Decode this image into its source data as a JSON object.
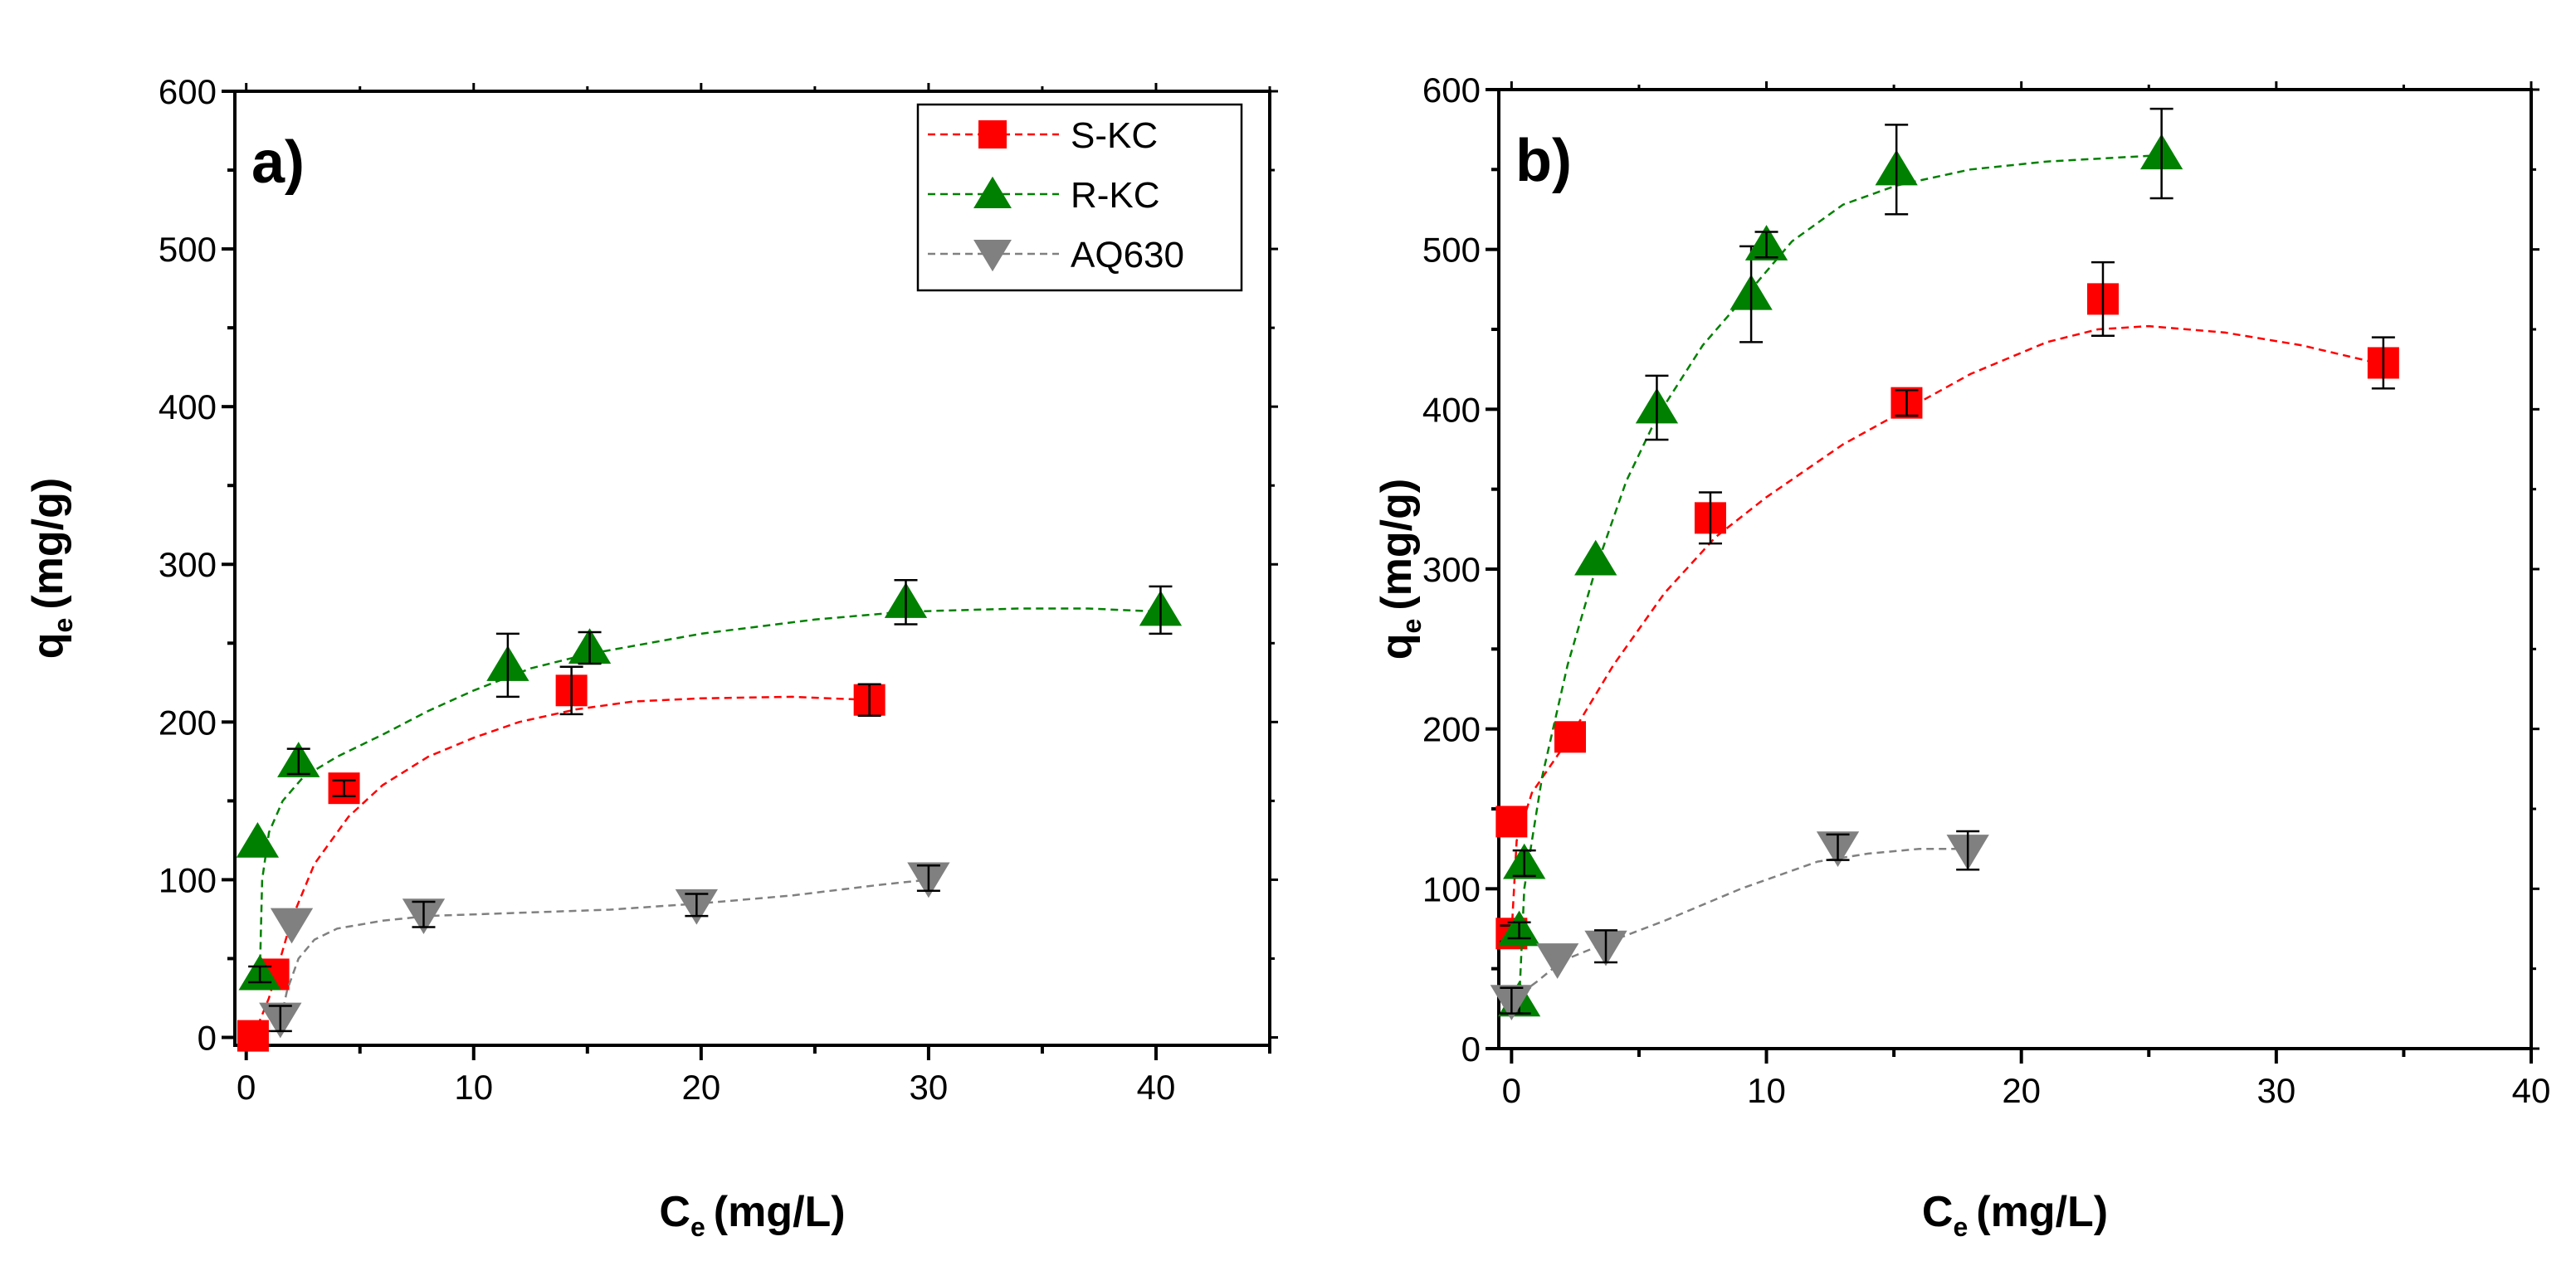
{
  "chart_data": [
    {
      "type": "scatter",
      "panel_label": "a)",
      "xlabel": "C",
      "xlabel_sub": "e",
      "xlabel_unit": "(mg/L)",
      "ylabel": "q",
      "ylabel_sub": "e",
      "ylabel_unit": "(mg/g)",
      "xlim": [
        -0.5,
        45
      ],
      "ylim": [
        -5,
        600
      ],
      "xticks": [
        0,
        10,
        20,
        30,
        40
      ],
      "yticks": [
        0,
        100,
        200,
        300,
        400,
        500,
        600
      ],
      "legend": "top-right",
      "series": [
        {
          "name": "S-KC",
          "color": "#ff0000",
          "marker": "square",
          "points": [
            [
              0.3,
              1,
              0
            ],
            [
              1.2,
              40,
              0
            ],
            [
              4.3,
              158,
              5
            ],
            [
              14.3,
              220,
              15
            ],
            [
              27.4,
              214,
              10
            ]
          ],
          "fit": [
            [
              0.3,
              0
            ],
            [
              1,
              25
            ],
            [
              2,
              75
            ],
            [
              3,
              110
            ],
            [
              4.5,
              140
            ],
            [
              6,
              160
            ],
            [
              8,
              178
            ],
            [
              10,
              190
            ],
            [
              12,
              200
            ],
            [
              14.5,
              208
            ],
            [
              17,
              213
            ],
            [
              20,
              215
            ],
            [
              24,
              216
            ],
            [
              27.4,
              214
            ]
          ]
        },
        {
          "name": "R-KC",
          "color": "#008000",
          "marker": "triangle-up",
          "points": [
            [
              0.6,
              40,
              5
            ],
            [
              0.5,
              124,
              0
            ],
            [
              2.3,
              175,
              8
            ],
            [
              11.5,
              236,
              20
            ],
            [
              15.1,
              247,
              10
            ],
            [
              29,
              276,
              14
            ],
            [
              40.2,
              271,
              15
            ]
          ],
          "fit": [
            [
              0.6,
              40
            ],
            [
              0.7,
              100
            ],
            [
              1,
              130
            ],
            [
              1.6,
              150
            ],
            [
              2.5,
              165
            ],
            [
              4,
              178
            ],
            [
              6,
              192
            ],
            [
              8,
              207
            ],
            [
              10,
              220
            ],
            [
              12.5,
              234
            ],
            [
              15,
              243
            ],
            [
              20,
              256
            ],
            [
              25,
              265
            ],
            [
              29,
              270
            ],
            [
              34,
              272
            ],
            [
              37,
              272
            ],
            [
              40.2,
              270
            ]
          ]
        },
        {
          "name": "AQ630",
          "color": "#808080",
          "marker": "triangle-down",
          "points": [
            [
              1.5,
              12,
              8
            ],
            [
              2,
              72,
              0
            ],
            [
              7.8,
              78,
              8
            ],
            [
              19.8,
              84,
              7
            ],
            [
              30,
              101,
              8
            ]
          ],
          "fit": [
            [
              1.5,
              10
            ],
            [
              1.8,
              30
            ],
            [
              2.3,
              50
            ],
            [
              3,
              62
            ],
            [
              4,
              69
            ],
            [
              6,
              74
            ],
            [
              8,
              77
            ],
            [
              12,
              79
            ],
            [
              16,
              81
            ],
            [
              20,
              85
            ],
            [
              24,
              90
            ],
            [
              28,
              97
            ],
            [
              30,
              100
            ]
          ]
        }
      ]
    },
    {
      "type": "scatter",
      "panel_label": "b)",
      "xlabel": "C",
      "xlabel_sub": "e",
      "xlabel_unit": "(mg/L)",
      "ylabel": "q",
      "ylabel_sub": "e",
      "ylabel_unit": "(mg/g)",
      "xlim": [
        -0.5,
        40
      ],
      "ylim": [
        0,
        600
      ],
      "xticks": [
        0,
        10,
        20,
        30,
        40
      ],
      "yticks": [
        0,
        100,
        200,
        300,
        400,
        500,
        600
      ],
      "series": [
        {
          "name": "S-KC",
          "color": "#ff0000",
          "marker": "square",
          "points": [
            [
              0,
              72,
              5
            ],
            [
              0,
              142,
              0
            ],
            [
              2.3,
              195,
              0
            ],
            [
              7.8,
              332,
              16
            ],
            [
              15.5,
              404,
              8
            ],
            [
              23.2,
              469,
              23
            ],
            [
              34.2,
              429,
              16
            ]
          ],
          "fit": [
            [
              0,
              72
            ],
            [
              0.2,
              130
            ],
            [
              0.8,
              160
            ],
            [
              2.3,
              195
            ],
            [
              4,
              240
            ],
            [
              6,
              285
            ],
            [
              8,
              320
            ],
            [
              10,
              345
            ],
            [
              13,
              378
            ],
            [
              15.5,
              400
            ],
            [
              18,
              422
            ],
            [
              21,
              442
            ],
            [
              23,
              450
            ],
            [
              25,
              452
            ],
            [
              28,
              448
            ],
            [
              31,
              440
            ],
            [
              34.2,
              428
            ]
          ]
        },
        {
          "name": "R-KC",
          "color": "#008000",
          "marker": "triangle-up",
          "points": [
            [
              0.3,
              30,
              8
            ],
            [
              0.3,
              74,
              5
            ],
            [
              0.5,
              116,
              8
            ],
            [
              3.3,
              306,
              0
            ],
            [
              5.7,
              401,
              20
            ],
            [
              9.4,
              472,
              30
            ],
            [
              10,
              503,
              8
            ],
            [
              15.1,
              550,
              28
            ],
            [
              25.5,
              560,
              28
            ]
          ],
          "fit": [
            [
              0.3,
              30
            ],
            [
              0.5,
              100
            ],
            [
              1.2,
              170
            ],
            [
              2.2,
              240
            ],
            [
              3.3,
              300
            ],
            [
              4.5,
              355
            ],
            [
              5.7,
              395
            ],
            [
              7.5,
              440
            ],
            [
              9.4,
              475
            ],
            [
              11,
              505
            ],
            [
              13,
              528
            ],
            [
              15.1,
              540
            ],
            [
              18,
              550
            ],
            [
              21,
              555
            ],
            [
              25.5,
              559
            ]
          ]
        },
        {
          "name": "AQ630",
          "color": "#808080",
          "marker": "triangle-down",
          "points": [
            [
              0,
              30,
              8
            ],
            [
              1.8,
              56,
              0
            ],
            [
              3.7,
              64,
              10
            ],
            [
              12.8,
              126,
              8
            ],
            [
              17.9,
              124,
              12
            ]
          ],
          "fit": [
            [
              0,
              30
            ],
            [
              1,
              42
            ],
            [
              2,
              55
            ],
            [
              3.7,
              66
            ],
            [
              6,
              80
            ],
            [
              9,
              100
            ],
            [
              12,
              117
            ],
            [
              14,
              122
            ],
            [
              16,
              125
            ],
            [
              17.9,
              125
            ]
          ]
        }
      ]
    }
  ]
}
